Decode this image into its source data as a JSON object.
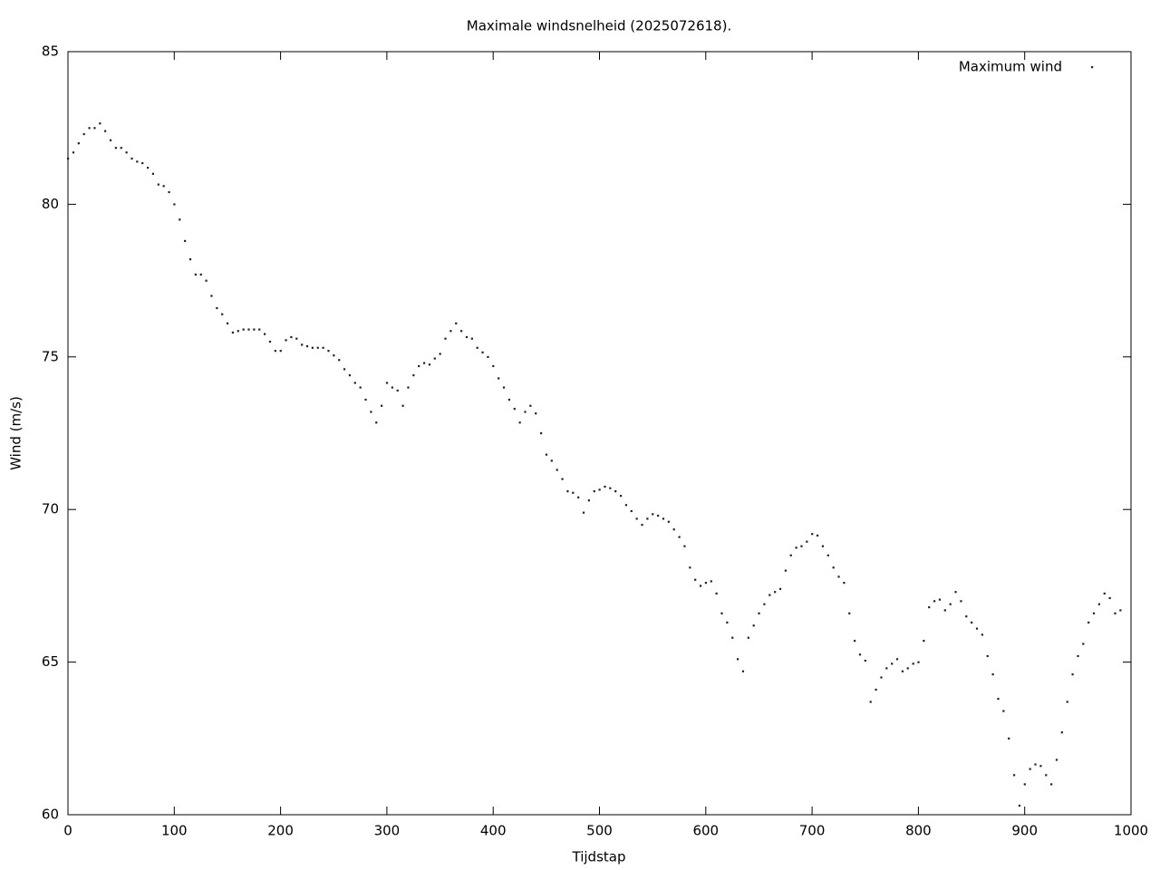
{
  "chart_data": {
    "type": "scatter",
    "title": "Maximale windsnelheid (2025072618).",
    "xlabel": "Tijdstap",
    "ylabel": "Wind (m/s)",
    "xlim": [
      0,
      1000
    ],
    "xticks": [
      0,
      100,
      200,
      300,
      400,
      500,
      600,
      700,
      800,
      900,
      1000
    ],
    "ylim": [
      60,
      85
    ],
    "yticks": [
      60,
      65,
      70,
      75,
      80,
      85
    ],
    "legend_position": "top-right",
    "x": [
      0,
      5,
      10,
      15,
      20,
      25,
      30,
      35,
      40,
      45,
      50,
      55,
      60,
      65,
      70,
      75,
      80,
      85,
      90,
      95,
      100,
      105,
      110,
      115,
      120,
      125,
      130,
      135,
      140,
      145,
      150,
      155,
      160,
      165,
      170,
      175,
      180,
      185,
      190,
      195,
      200,
      205,
      210,
      215,
      220,
      225,
      230,
      235,
      240,
      245,
      250,
      255,
      260,
      265,
      270,
      275,
      280,
      285,
      290,
      295,
      300,
      305,
      310,
      315,
      320,
      325,
      330,
      335,
      340,
      345,
      350,
      355,
      360,
      365,
      370,
      375,
      380,
      385,
      390,
      395,
      400,
      405,
      410,
      415,
      420,
      425,
      430,
      435,
      440,
      445,
      450,
      455,
      460,
      465,
      470,
      475,
      480,
      485,
      490,
      495,
      500,
      505,
      510,
      515,
      520,
      525,
      530,
      535,
      540,
      545,
      550,
      555,
      560,
      565,
      570,
      575,
      580,
      585,
      590,
      595,
      600,
      605,
      610,
      615,
      620,
      625,
      630,
      635,
      640,
      645,
      650,
      655,
      660,
      665,
      670,
      675,
      680,
      685,
      690,
      695,
      700,
      705,
      710,
      715,
      720,
      725,
      730,
      735,
      740,
      745,
      750,
      755,
      760,
      765,
      770,
      775,
      780,
      785,
      790,
      795,
      800,
      805,
      810,
      815,
      820,
      825,
      830,
      835,
      840,
      845,
      850,
      855,
      860,
      865,
      870,
      875,
      880,
      885,
      890,
      895,
      900,
      905,
      910,
      915,
      920,
      925,
      930,
      935,
      940,
      945,
      950,
      955,
      960,
      965,
      970,
      975,
      980,
      985,
      990
    ],
    "series": [
      {
        "name": "Maximum wind",
        "color": "#222222",
        "values": [
          81.5,
          81.7,
          82.0,
          82.3,
          82.5,
          82.5,
          82.65,
          82.4,
          82.1,
          81.85,
          81.85,
          81.7,
          81.5,
          81.4,
          81.35,
          81.2,
          81.0,
          80.65,
          80.6,
          80.4,
          80.0,
          79.5,
          78.8,
          78.2,
          77.7,
          77.7,
          77.5,
          77.0,
          76.6,
          76.4,
          76.1,
          75.8,
          75.85,
          75.9,
          75.9,
          75.9,
          75.9,
          75.75,
          75.5,
          75.2,
          75.2,
          75.55,
          75.65,
          75.6,
          75.4,
          75.35,
          75.3,
          75.3,
          75.3,
          75.2,
          75.05,
          74.9,
          74.6,
          74.4,
          74.15,
          74.0,
          73.6,
          73.2,
          72.85,
          73.4,
          74.15,
          74.0,
          73.9,
          73.4,
          74.0,
          74.4,
          74.7,
          74.8,
          74.75,
          74.95,
          75.1,
          75.6,
          75.85,
          76.1,
          75.85,
          75.65,
          75.6,
          75.3,
          75.15,
          75.0,
          74.7,
          74.3,
          74.0,
          73.6,
          73.3,
          72.85,
          73.2,
          73.4,
          73.15,
          72.5,
          71.8,
          71.6,
          71.3,
          71.0,
          70.6,
          70.55,
          70.4,
          69.9,
          70.3,
          70.6,
          70.65,
          70.75,
          70.7,
          70.6,
          70.45,
          70.15,
          69.95,
          69.7,
          69.5,
          69.7,
          69.85,
          69.8,
          69.7,
          69.6,
          69.35,
          69.1,
          68.8,
          68.1,
          67.7,
          67.5,
          67.6,
          67.65,
          67.25,
          66.6,
          66.3,
          65.8,
          65.1,
          64.7,
          65.8,
          66.2,
          66.6,
          66.9,
          67.2,
          67.3,
          67.4,
          68.0,
          68.5,
          68.75,
          68.8,
          68.95,
          69.2,
          69.15,
          68.8,
          68.5,
          68.1,
          67.8,
          67.6,
          66.6,
          65.7,
          65.25,
          65.05,
          63.7,
          64.1,
          64.5,
          64.8,
          64.95,
          65.1,
          64.7,
          64.8,
          64.95,
          65.0,
          65.7,
          66.8,
          67.0,
          67.05,
          66.7,
          66.9,
          67.3,
          67.0,
          66.5,
          66.3,
          66.1,
          65.9,
          65.2,
          64.6,
          63.8,
          63.4,
          62.5,
          61.3,
          60.3,
          61.0,
          61.5,
          61.65,
          61.6,
          61.3,
          61.0,
          61.8,
          62.7,
          63.7,
          64.6,
          65.2,
          65.6,
          66.3,
          66.6,
          66.9,
          67.25,
          67.1,
          66.6,
          66.7
        ]
      }
    ]
  }
}
